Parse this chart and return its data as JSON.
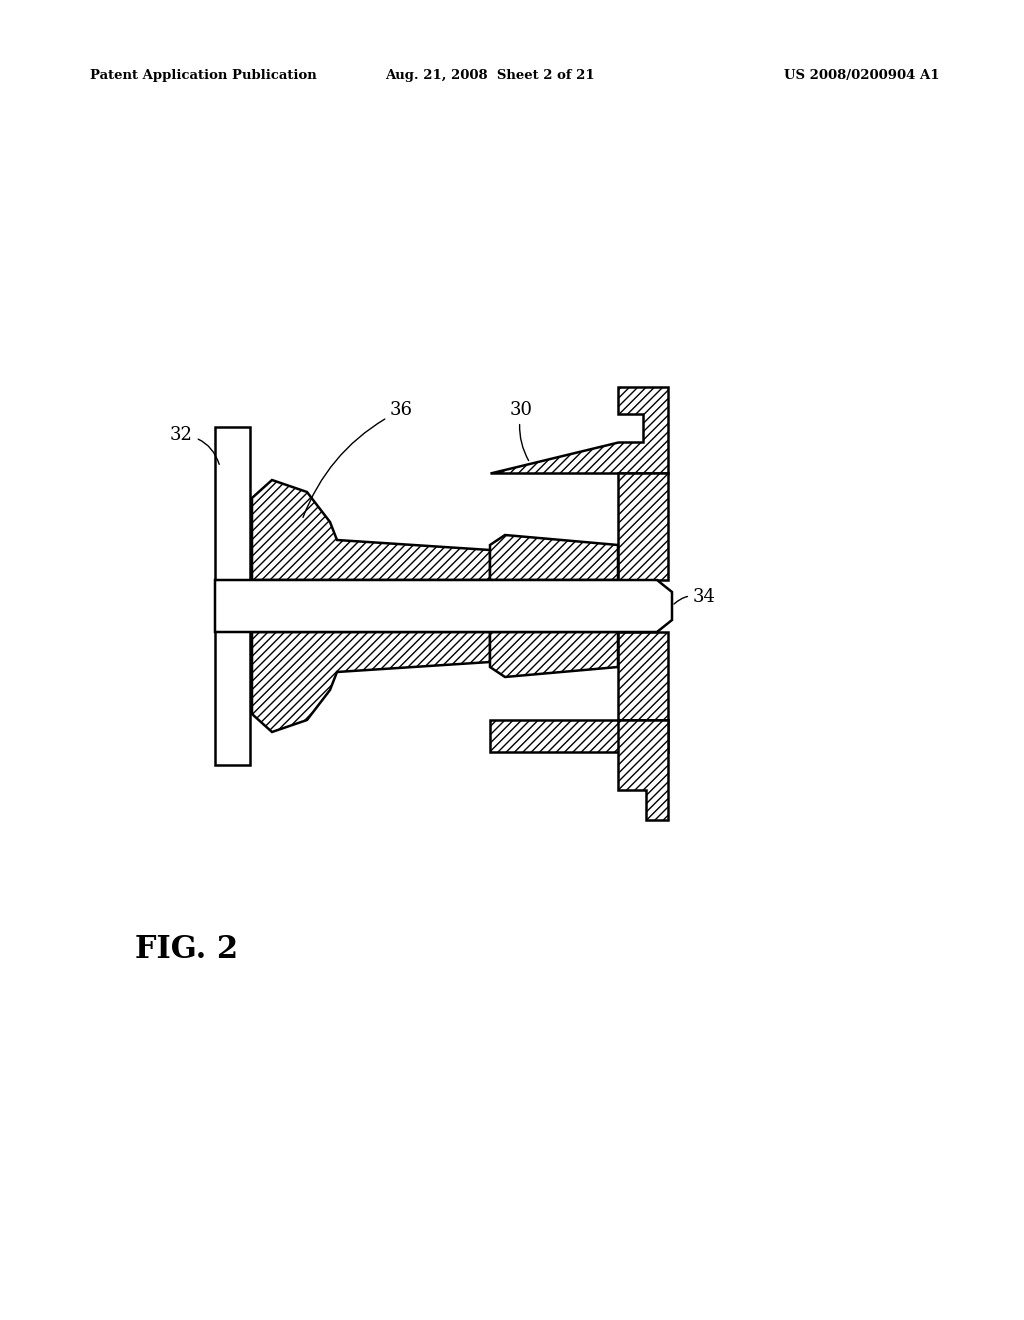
{
  "header_left": "Patent Application Publication",
  "header_center": "Aug. 21, 2008  Sheet 2 of 21",
  "header_right": "US 2008/0200904 A1",
  "fig_label": "FIG. 2",
  "bg_color": "#ffffff",
  "line_color": "#000000",
  "lw": 1.8
}
